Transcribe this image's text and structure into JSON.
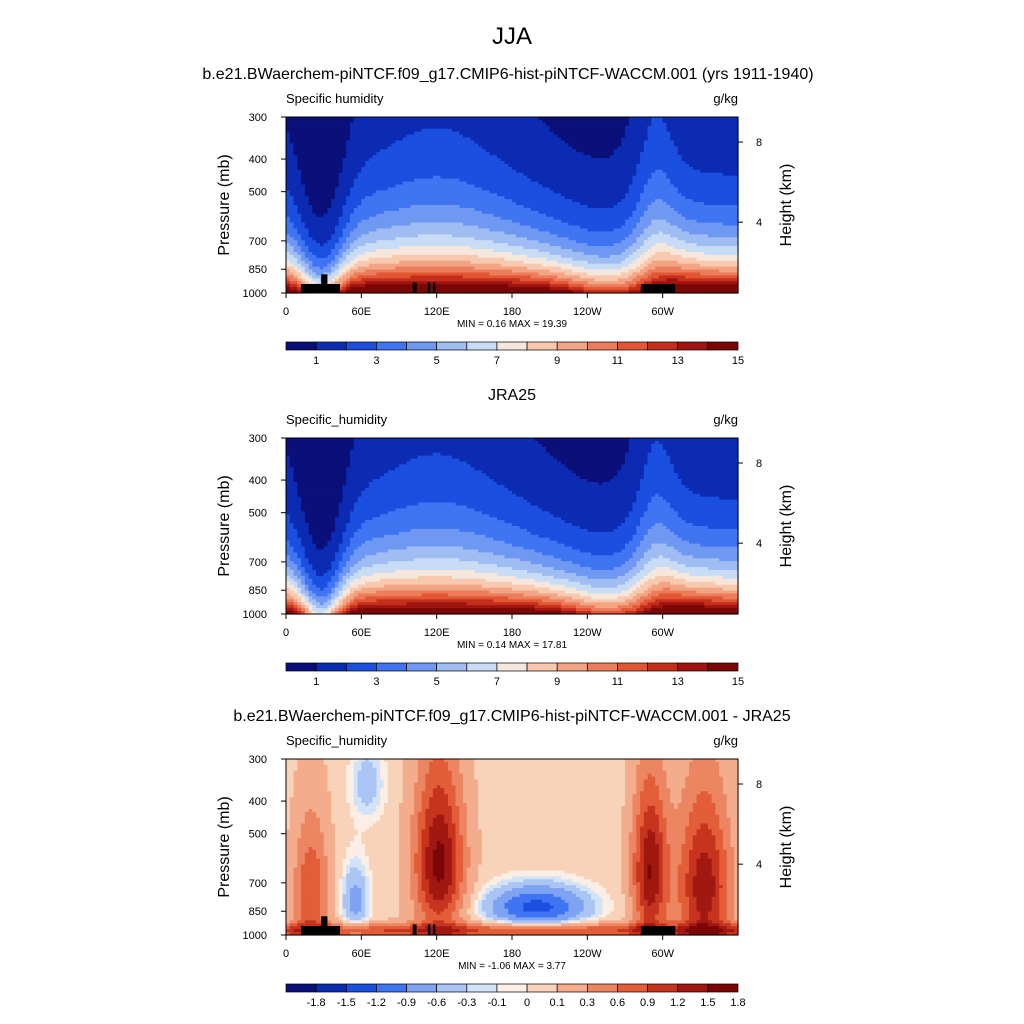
{
  "figure": {
    "title": "JJA",
    "subtitle": "b.e21.BWaerchem-piNTCF.f09_g17.CMIP6-hist-piNTCF-WACCM.001 (yrs 1911-1940)"
  },
  "colors": {
    "abs_scale": [
      "#0a0f7a",
      "#0c2bb3",
      "#1a4fe0",
      "#3f74f2",
      "#6f98f2",
      "#9fbcf3",
      "#c9dcf6",
      "#f6e7dc",
      "#f8c9ae",
      "#f3a484",
      "#ec7d5c",
      "#e35634",
      "#c52e1b",
      "#9f1410",
      "#7a0606"
    ],
    "diff_scale": [
      "#0a0f7a",
      "#0c2bb3",
      "#1a4fe0",
      "#3f74f2",
      "#7ea3f2",
      "#aac4f4",
      "#d3e3f7",
      "#fbeee4",
      "#f9d2ba",
      "#f4ad8c",
      "#ec8562",
      "#e35d38",
      "#c6341f",
      "#a11811",
      "#7a0606"
    ],
    "terrain": "#000000"
  },
  "chart_data": [
    {
      "id": "panel-model",
      "type": "contour",
      "heading": "",
      "left_label": "Specific humidity",
      "right_label": "g/kg",
      "ylabel": "Pressure (mb)",
      "ylabel_right": "Height (km)",
      "yticks": [
        "300",
        "400",
        "500",
        "700",
        "850",
        "1000"
      ],
      "ytick_values": [
        300,
        400,
        500,
        700,
        850,
        1000
      ],
      "ylim": [
        1000,
        300
      ],
      "height_ticks": [
        "8",
        "4"
      ],
      "height_tick_values": [
        8,
        4
      ],
      "xticks": [
        "0",
        "60E",
        "120E",
        "180",
        "120W",
        "60W"
      ],
      "xtick_values": [
        0,
        60,
        120,
        180,
        240,
        300
      ],
      "xlim": [
        0,
        360
      ],
      "stats": "MIN =  0.16  MAX =  19.39",
      "colorbar": {
        "labels": [
          "1",
          "3",
          "5",
          "7",
          "9",
          "11",
          "13",
          "15"
        ],
        "levels": [
          0,
          1,
          2,
          3,
          4,
          5,
          6,
          7,
          8,
          9,
          10,
          11,
          12,
          13,
          14,
          15
        ]
      },
      "field": "model"
    },
    {
      "id": "panel-obs",
      "type": "contour",
      "heading": "JRA25",
      "left_label": "Specific_humidity",
      "right_label": "g/kg",
      "ylabel": "Pressure (mb)",
      "ylabel_right": "Height (km)",
      "yticks": [
        "300",
        "400",
        "500",
        "700",
        "850",
        "1000"
      ],
      "ytick_values": [
        300,
        400,
        500,
        700,
        850,
        1000
      ],
      "ylim": [
        1000,
        300
      ],
      "height_ticks": [
        "8",
        "4"
      ],
      "height_tick_values": [
        8,
        4
      ],
      "xticks": [
        "0",
        "60E",
        "120E",
        "180",
        "120W",
        "60W"
      ],
      "xtick_values": [
        0,
        60,
        120,
        180,
        240,
        300
      ],
      "xlim": [
        0,
        360
      ],
      "stats": "MIN =  0.14  MAX =  17.81",
      "colorbar": {
        "labels": [
          "1",
          "3",
          "5",
          "7",
          "9",
          "11",
          "13",
          "15"
        ],
        "levels": [
          0,
          1,
          2,
          3,
          4,
          5,
          6,
          7,
          8,
          9,
          10,
          11,
          12,
          13,
          14,
          15
        ]
      },
      "field": "obs"
    },
    {
      "id": "panel-diff",
      "type": "contour",
      "heading": "b.e21.BWaerchem-piNTCF.f09_g17.CMIP6-hist-piNTCF-WACCM.001 - JRA25",
      "left_label": "Specific_humidity",
      "right_label": "g/kg",
      "ylabel": "Pressure (mb)",
      "ylabel_right": "Height (km)",
      "yticks": [
        "300",
        "400",
        "500",
        "700",
        "850",
        "1000"
      ],
      "ytick_values": [
        300,
        400,
        500,
        700,
        850,
        1000
      ],
      "ylim": [
        1000,
        300
      ],
      "height_ticks": [
        "8",
        "4"
      ],
      "height_tick_values": [
        8,
        4
      ],
      "xticks": [
        "0",
        "60E",
        "120E",
        "180",
        "120W",
        "60W"
      ],
      "xtick_values": [
        0,
        60,
        120,
        180,
        240,
        300
      ],
      "xlim": [
        0,
        360
      ],
      "stats": "MIN = -1.06  MAX =  3.77",
      "colorbar": {
        "labels": [
          "-1.8",
          "-1.5",
          "-1.2",
          "-0.9",
          "-0.6",
          "-0.3",
          "-0.1",
          "0",
          "0.1",
          "0.3",
          "0.6",
          "0.9",
          "1.2",
          "1.5",
          "1.8"
        ],
        "levels": [
          -1.8,
          -1.5,
          -1.2,
          -0.9,
          -0.6,
          -0.3,
          -0.1,
          0,
          0.1,
          0.3,
          0.6,
          0.9,
          1.2,
          1.5,
          1.8
        ]
      },
      "field": "diff"
    }
  ]
}
